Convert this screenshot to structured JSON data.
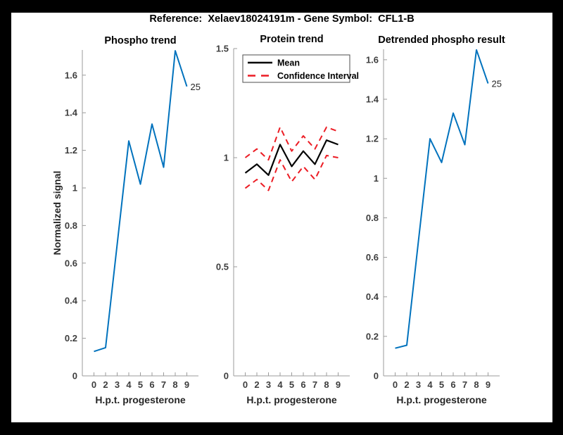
{
  "figure_title": "Reference:  Xelaev18024191m - Gene Symbol:  CFL1-B",
  "colors": {
    "line_blue": "#0072BD",
    "ci_red": "#EC1C24",
    "mean_black": "#000000",
    "axis_gray": "#9b9b9b",
    "label_gray": "#3d3d3d",
    "frame_black": "#000000",
    "figure_bg": "#ffffff"
  },
  "chart_data": [
    {
      "type": "line",
      "title": "Phospho trend",
      "xlabel": "H.p.t. progesterone",
      "ylabel": "Normalized signal",
      "x_values": [
        0,
        2,
        3,
        4,
        5,
        6,
        7,
        8,
        9
      ],
      "x_tick_labels": [
        "0",
        "2",
        "3",
        "4",
        "5",
        "6",
        "7",
        "8",
        "9"
      ],
      "y_tick_values": [
        0,
        0.2,
        0.4,
        0.6,
        0.8,
        1,
        1.2,
        1.4,
        1.6
      ],
      "y_tick_labels": [
        "0",
        "0.2",
        "0.4",
        "0.6",
        "0.8",
        "1",
        "1.2",
        "1.4",
        "1.6"
      ],
      "ylim": [
        0,
        1.734
      ],
      "grid": false,
      "legend": null,
      "end_annotation": "25",
      "series": [
        {
          "name": "phospho-signal",
          "color": "#0072BD",
          "dash": "none",
          "width": 2,
          "values": [
            0.13,
            0.15,
            0.7,
            1.25,
            1.02,
            1.34,
            1.11,
            1.73,
            1.54
          ]
        }
      ]
    },
    {
      "type": "line",
      "title": "Protein trend",
      "xlabel": "H.p.t. progesterone",
      "ylabel": null,
      "x_values": [
        0,
        2,
        3,
        4,
        5,
        6,
        7,
        8,
        9
      ],
      "x_tick_labels": [
        "0",
        "2",
        "3",
        "4",
        "5",
        "6",
        "7",
        "8",
        "9"
      ],
      "y_tick_values": [
        0,
        0.5,
        1,
        1.5
      ],
      "y_tick_labels": [
        "0",
        "0.5",
        "1",
        "1.5"
      ],
      "ylim": [
        0,
        1.5
      ],
      "grid": false,
      "end_annotation": null,
      "legend": {
        "position": "upper-left",
        "entries": [
          {
            "label": "Mean",
            "color": "#000000",
            "dash": "none"
          },
          {
            "label": "Confidence Interval",
            "color": "#EC1C24",
            "dash": "dashed"
          }
        ]
      },
      "series": [
        {
          "name": "mean",
          "color": "#000000",
          "dash": "none",
          "width": 2.2,
          "values": [
            0.93,
            0.97,
            0.92,
            1.06,
            0.96,
            1.03,
            0.97,
            1.08,
            1.06
          ]
        },
        {
          "name": "ci-upper",
          "color": "#EC1C24",
          "dash": "dashed",
          "width": 2,
          "values": [
            1.0,
            1.04,
            0.99,
            1.14,
            1.03,
            1.1,
            1.04,
            1.14,
            1.12
          ]
        },
        {
          "name": "ci-lower",
          "color": "#EC1C24",
          "dash": "dashed",
          "width": 2,
          "values": [
            0.86,
            0.9,
            0.85,
            0.99,
            0.89,
            0.96,
            0.9,
            1.01,
            1.0
          ]
        }
      ]
    },
    {
      "type": "line",
      "title": "Detrended phospho result",
      "xlabel": "H.p.t. progesterone",
      "ylabel": null,
      "x_values": [
        0,
        2,
        3,
        4,
        5,
        6,
        7,
        8,
        9
      ],
      "x_tick_labels": [
        "0",
        "2",
        "3",
        "4",
        "5",
        "6",
        "7",
        "8",
        "9"
      ],
      "y_tick_values": [
        0,
        0.2,
        0.4,
        0.6,
        0.8,
        1,
        1.2,
        1.4,
        1.6
      ],
      "y_tick_labels": [
        "0",
        "0.2",
        "0.4",
        "0.6",
        "0.8",
        "1",
        "1.2",
        "1.4",
        "1.6"
      ],
      "ylim": [
        0,
        1.653
      ],
      "grid": false,
      "legend": null,
      "end_annotation": "25",
      "series": [
        {
          "name": "detrended-phospho",
          "color": "#0072BD",
          "dash": "none",
          "width": 2,
          "values": [
            0.14,
            0.155,
            0.68,
            1.2,
            1.08,
            1.33,
            1.17,
            1.65,
            1.48
          ]
        }
      ]
    }
  ]
}
